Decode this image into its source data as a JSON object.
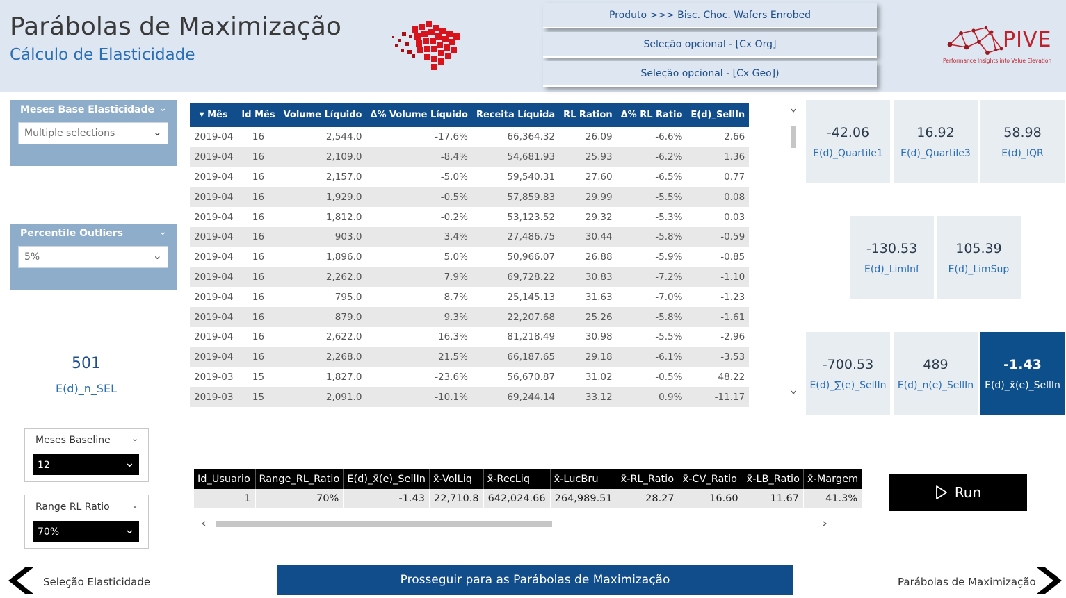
{
  "header": {
    "title": "Parábolas de Maximização",
    "subtitle": "Cálculo de Elasticidade",
    "buttons": [
      "Produto >>> Bisc. Choc. Wafers Enrobed",
      "Seleção opcional - [Cx Org]",
      "Seleção opcional - [Cx Geo])"
    ],
    "logo": {
      "name": "PIVE",
      "tagline": "Performance Insights into Value Elevation",
      "color": "#c0202a"
    }
  },
  "slicers": {
    "meses_base": {
      "label": "Meses Base Elasticidade",
      "value": "Multiple selections"
    },
    "percentile": {
      "label": "Percentile Outliers",
      "value": "5%"
    },
    "meses_baseline": {
      "label": "Meses Baseline",
      "value": "12"
    },
    "range_rl": {
      "label": "Range RL Ratio",
      "value": "70%"
    }
  },
  "n_sel": {
    "value": "501",
    "label": "E(d)_n_SEL"
  },
  "main_table": {
    "headers": [
      "Mês",
      "Id Mês",
      "Volume Líquido",
      "Δ% Volume Líquido",
      "Receita Líquida",
      "RL Ration",
      "Δ% RL Ratio",
      "E(d)_SellIn"
    ],
    "rows": [
      [
        "2019-04",
        "16",
        "2,544.0",
        "-17.6%",
        "66,364.32",
        "26.09",
        "-6.6%",
        "2.66"
      ],
      [
        "2019-04",
        "16",
        "2,109.0",
        "-8.4%",
        "54,681.93",
        "25.93",
        "-6.2%",
        "1.36"
      ],
      [
        "2019-04",
        "16",
        "2,157.0",
        "-5.0%",
        "59,540.31",
        "27.60",
        "-6.5%",
        "0.77"
      ],
      [
        "2019-04",
        "16",
        "1,929.0",
        "-0.5%",
        "57,859.83",
        "29.99",
        "-5.5%",
        "0.08"
      ],
      [
        "2019-04",
        "16",
        "1,812.0",
        "-0.2%",
        "53,123.52",
        "29.32",
        "-5.3%",
        "0.03"
      ],
      [
        "2019-04",
        "16",
        "903.0",
        "3.4%",
        "27,486.75",
        "30.44",
        "-5.8%",
        "-0.59"
      ],
      [
        "2019-04",
        "16",
        "1,896.0",
        "5.0%",
        "50,966.07",
        "26.88",
        "-5.9%",
        "-0.85"
      ],
      [
        "2019-04",
        "16",
        "2,262.0",
        "7.9%",
        "69,728.22",
        "30.83",
        "-7.2%",
        "-1.10"
      ],
      [
        "2019-04",
        "16",
        "795.0",
        "8.7%",
        "25,145.13",
        "31.63",
        "-7.0%",
        "-1.23"
      ],
      [
        "2019-04",
        "16",
        "879.0",
        "9.3%",
        "22,207.68",
        "25.26",
        "-5.8%",
        "-1.61"
      ],
      [
        "2019-04",
        "16",
        "2,622.0",
        "16.3%",
        "81,218.49",
        "30.98",
        "-5.5%",
        "-2.96"
      ],
      [
        "2019-04",
        "16",
        "2,268.0",
        "21.5%",
        "66,187.65",
        "29.18",
        "-6.1%",
        "-3.53"
      ],
      [
        "2019-03",
        "15",
        "1,827.0",
        "-23.6%",
        "56,670.87",
        "31.02",
        "-0.5%",
        "48.22"
      ],
      [
        "2019-03",
        "15",
        "2,091.0",
        "-10.1%",
        "69,244.14",
        "33.12",
        "0.9%",
        "-11.17"
      ]
    ]
  },
  "cards": {
    "q1": {
      "value": "-42.06",
      "label": "E(d)_Quartile1"
    },
    "q3": {
      "value": "16.92",
      "label": "E(d)_Quartile3"
    },
    "iqr": {
      "value": "58.98",
      "label": "E(d)_IQR"
    },
    "liminf": {
      "value": "-130.53",
      "label": "E(d)_LimInf"
    },
    "limsup": {
      "value": "105.39",
      "label": "E(d)_LimSup"
    },
    "sum": {
      "value": "-700.53",
      "label": "E(d)_∑(e)_SellIn"
    },
    "n": {
      "value": "489",
      "label": "E(d)_n(e)_SellIn"
    },
    "mean": {
      "value": "-1.43",
      "label": "E(d)_x̄(e)_SellIn"
    }
  },
  "bottom_table": {
    "headers": [
      "Id_Usuario",
      "Range_RL_Ratio",
      "E(d)_x̄(e)_SellIn",
      "x̄-VolLiq",
      "x̄-RecLiq",
      "x̄-LucBru",
      "x̄-RL_Ratio",
      "x̄-CV_Ratio",
      "x̄-LB_Ratio",
      "x̄-Margem"
    ],
    "row": [
      "1",
      "70%",
      "-1.43",
      "22,710.8",
      "642,024.66",
      "264,989.51",
      "28.27",
      "16.60",
      "11.67",
      "41.3%"
    ]
  },
  "run_label": "Run",
  "nav": {
    "back_label": "Seleção Elasticidade",
    "proceed_label": "Prosseguir para as Parábolas de Maximização",
    "next_label": "Parábolas de Maximização"
  },
  "colors": {
    "header_bg": "#dde6f1",
    "dark_blue": "#114d8a",
    "slicer_blue": "#8eadcb",
    "accent_text": "#2a6fb5"
  }
}
